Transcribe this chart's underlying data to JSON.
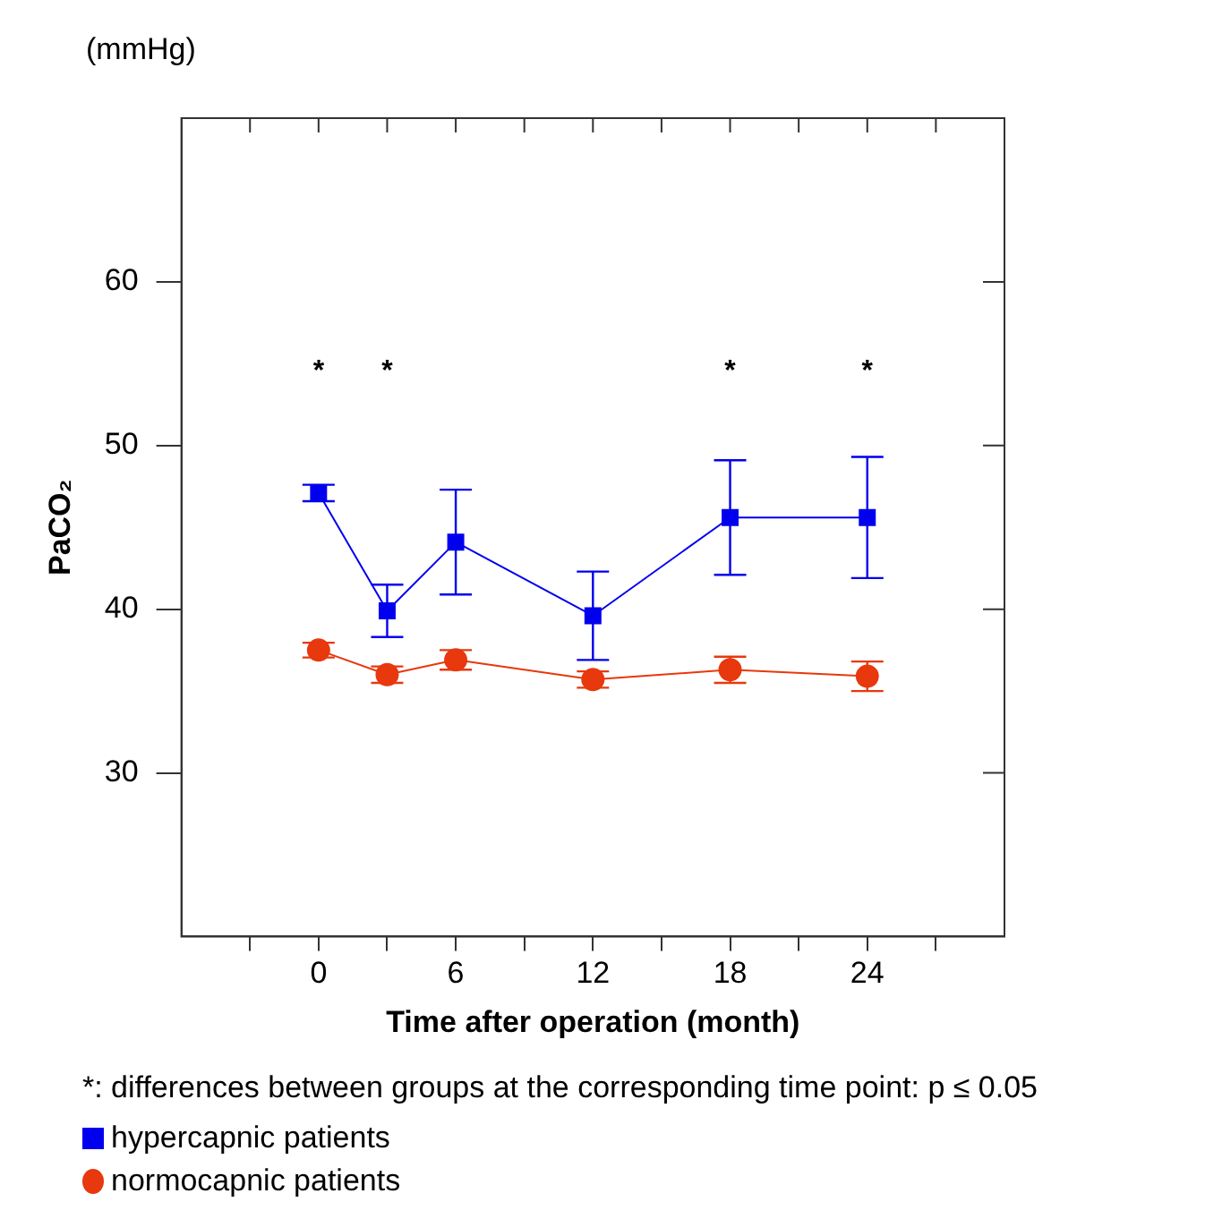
{
  "chart_data": {
    "type": "line",
    "xlabel": "Time after operation (month)",
    "ylabel": "PaCO₂",
    "x": [
      0,
      3,
      6,
      12,
      18,
      24
    ],
    "xlim": [
      -6,
      30
    ],
    "xticks": [
      {
        "value": -3,
        "label": null
      },
      0,
      {
        "value": 3,
        "label": null
      },
      6,
      {
        "value": 9,
        "label": null
      },
      12,
      {
        "value": 15,
        "label": null
      },
      18,
      {
        "value": 21,
        "label": null
      },
      24,
      {
        "value": 27,
        "label": null
      }
    ],
    "ylim": [
      20,
      70
    ],
    "yticks": [
      30,
      40,
      50,
      60
    ],
    "series": [
      {
        "name": "hypercapnic patients",
        "color": "#0000ee",
        "marker": "square",
        "values": [
          47.1,
          39.9,
          44.1,
          39.6,
          45.6,
          45.6
        ],
        "errors": [
          0.5,
          1.6,
          3.2,
          2.7,
          3.5,
          3.7
        ]
      },
      {
        "name": "normocapnic patients",
        "color": "#e8380d",
        "marker": "circle",
        "values": [
          37.5,
          36.0,
          36.9,
          35.7,
          36.3,
          35.9
        ],
        "errors": [
          0.45,
          0.5,
          0.6,
          0.5,
          0.8,
          0.9
        ]
      }
    ],
    "annotations": [
      "(mmHg)",
      "*",
      "*",
      "*",
      "*",
      "*: differences between groups at the corresponding time point: p ≤ 0.05"
    ],
    "legend": "bottom",
    "grid": false,
    "line_style": "solid"
  }
}
